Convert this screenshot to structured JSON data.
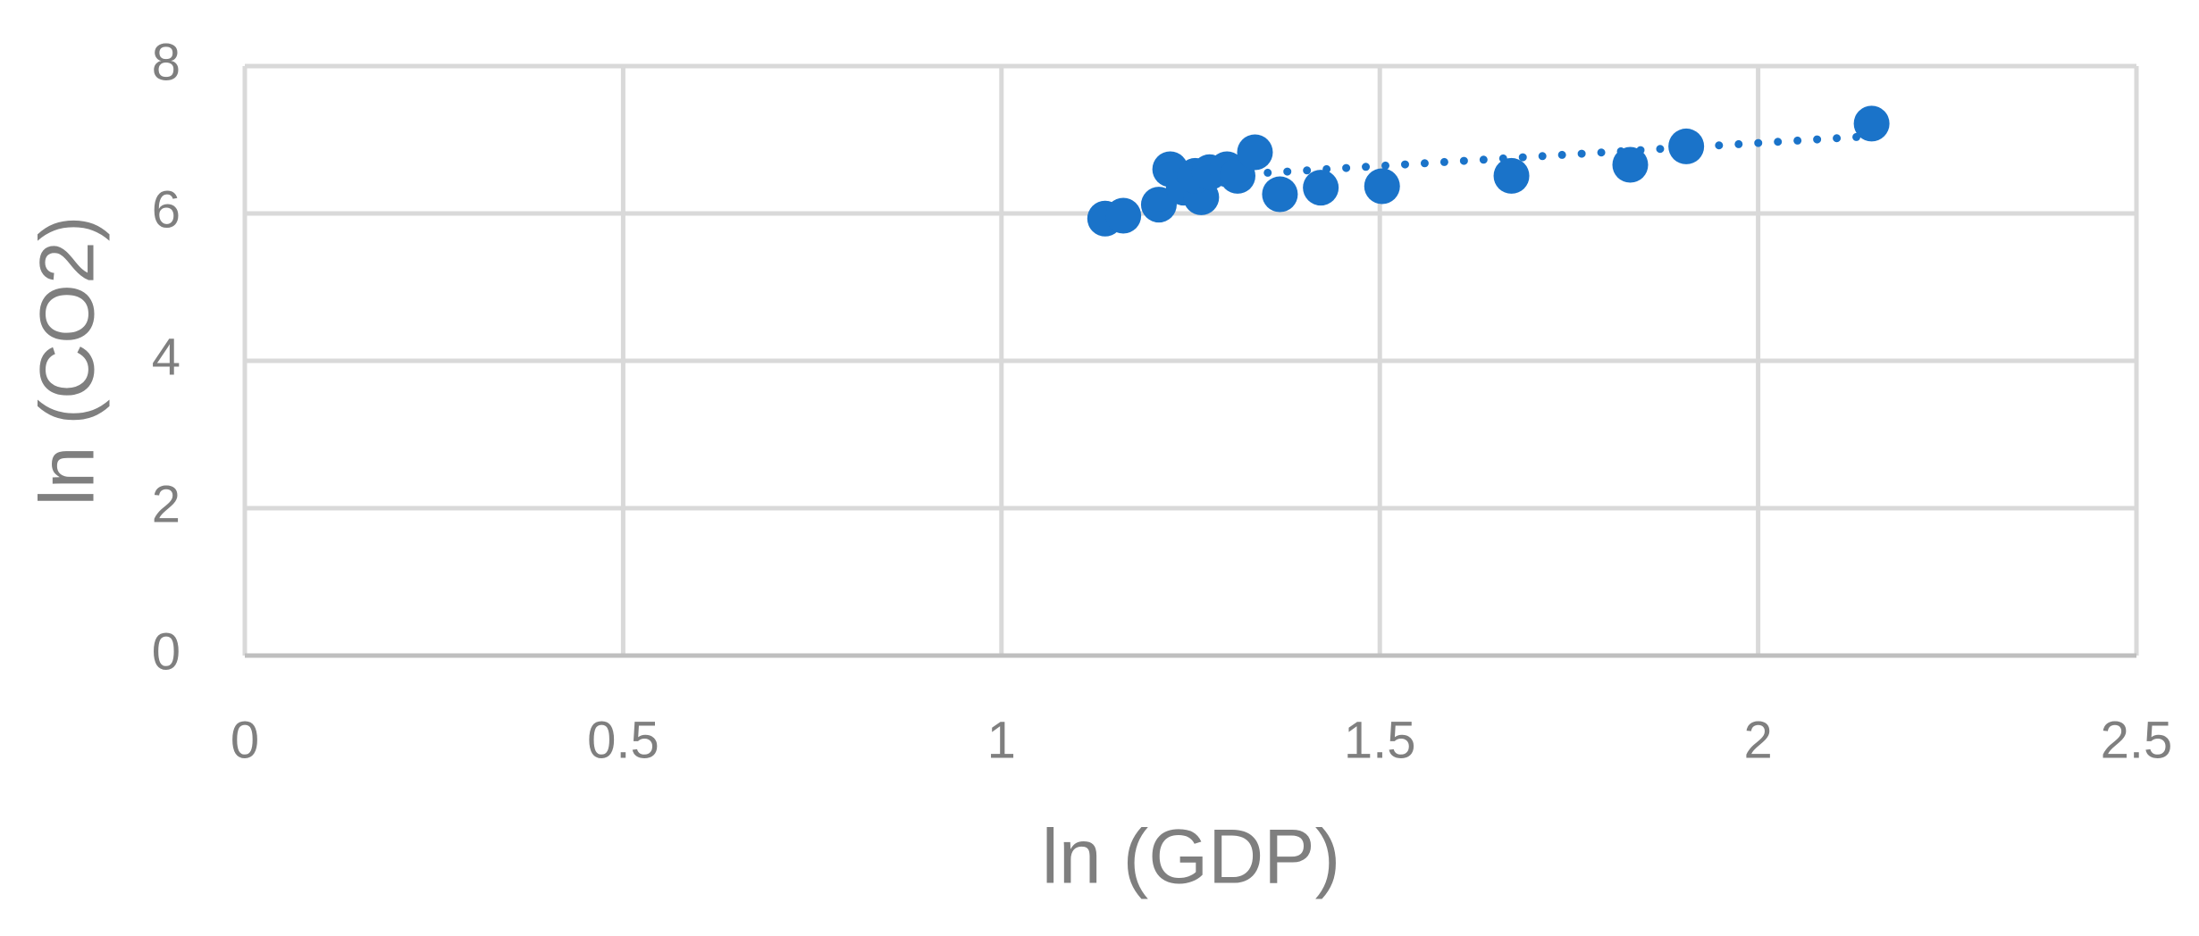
{
  "chart_data": {
    "type": "scatter",
    "x_label": "ln (GDP)",
    "y_label": "ln (CO2)",
    "series": [
      {
        "color": "#1a73c9",
        "x": [
          1.137,
          1.161,
          1.208,
          1.223,
          1.241,
          1.264,
          1.256,
          1.275,
          1.298,
          1.312,
          1.335,
          1.368,
          1.422,
          1.503,
          1.674,
          1.831,
          1.905,
          2.15
        ],
        "values": [
          5.93,
          5.97,
          6.12,
          6.6,
          6.35,
          6.22,
          6.51,
          6.56,
          6.6,
          6.51,
          6.83,
          6.26,
          6.35,
          6.37,
          6.51,
          6.66,
          6.91,
          7.22
        ]
      }
    ],
    "trendline": {
      "x": [
        1.3,
        2.15
      ],
      "y": [
        6.52,
        7.05
      ],
      "style": "dotted",
      "color": "#1a73c9"
    },
    "xlim": [
      0,
      2.5
    ],
    "xticks": [
      0,
      0.5,
      1,
      1.5,
      2,
      2.5
    ],
    "ylim": [
      0,
      8
    ],
    "yticks": [
      0,
      2,
      4,
      6,
      8
    ],
    "grid": true
  }
}
